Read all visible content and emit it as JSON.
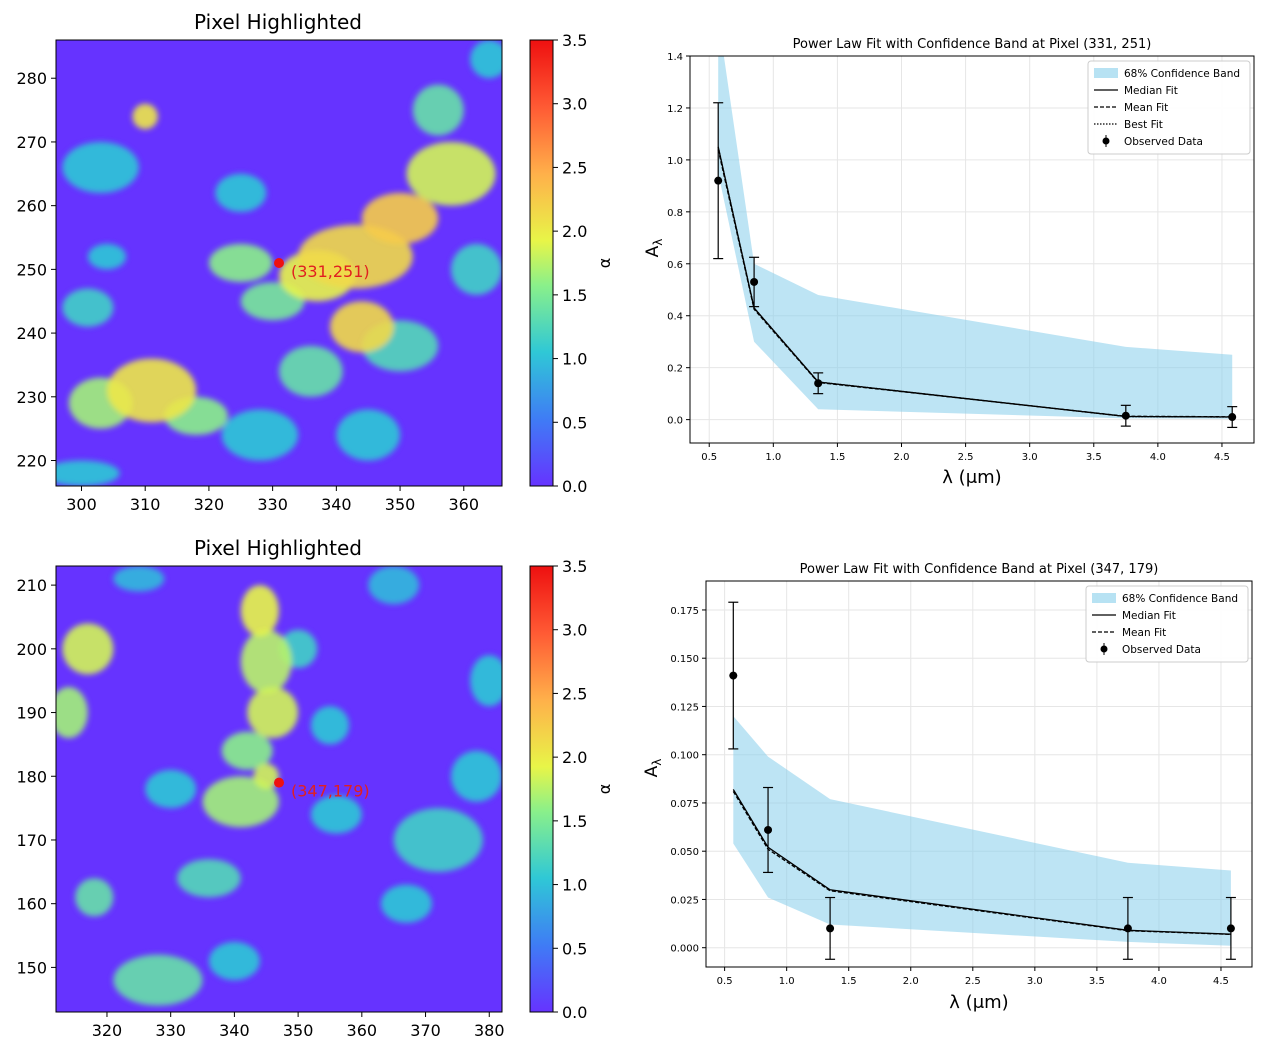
{
  "colors": {
    "band": "#87ceeb",
    "fit": "#000000",
    "marker_highlight": "#ee1111",
    "label_highlight": "#e02020",
    "map_background": "#6633ff"
  },
  "chart_data": [
    {
      "type": "heatmap",
      "panel": "top-left",
      "title": "Pixel Highlighted",
      "xlabel": "",
      "ylabel": "",
      "xlim": [
        296,
        366
      ],
      "ylim": [
        216,
        286
      ],
      "xticks": [
        300,
        310,
        320,
        330,
        340,
        350,
        360
      ],
      "yticks": [
        220,
        230,
        240,
        250,
        260,
        270,
        280
      ],
      "colorbar": {
        "label": "α",
        "min": 0.0,
        "max": 3.5,
        "ticks": [
          "0.0",
          "0.5",
          "1.0",
          "1.5",
          "2.0",
          "2.5",
          "3.0",
          "3.5"
        ]
      },
      "colormap": "rainbow",
      "highlight": {
        "x": 331,
        "y": 251,
        "label": "(331,251)"
      },
      "blobs": [
        {
          "x": 343,
          "y": 252,
          "rx": 9,
          "ry": 5,
          "v": 2.1
        },
        {
          "x": 350,
          "y": 258,
          "rx": 6,
          "ry": 4,
          "v": 2.2
        },
        {
          "x": 337,
          "y": 249,
          "rx": 6,
          "ry": 4,
          "v": 1.9
        },
        {
          "x": 344,
          "y": 241,
          "rx": 5,
          "ry": 4,
          "v": 2.1
        },
        {
          "x": 358,
          "y": 265,
          "rx": 7,
          "ry": 5,
          "v": 1.8
        },
        {
          "x": 356,
          "y": 275,
          "rx": 4,
          "ry": 4,
          "v": 1.3
        },
        {
          "x": 311,
          "y": 231,
          "rx": 7,
          "ry": 5,
          "v": 2.0
        },
        {
          "x": 303,
          "y": 229,
          "rx": 5,
          "ry": 4,
          "v": 1.6
        },
        {
          "x": 318,
          "y": 227,
          "rx": 5,
          "ry": 3,
          "v": 1.5
        },
        {
          "x": 330,
          "y": 245,
          "rx": 5,
          "ry": 3,
          "v": 1.4
        },
        {
          "x": 325,
          "y": 251,
          "rx": 5,
          "ry": 3,
          "v": 1.5
        },
        {
          "x": 310,
          "y": 274,
          "rx": 2,
          "ry": 2,
          "v": 2.0
        },
        {
          "x": 303,
          "y": 266,
          "rx": 6,
          "ry": 4,
          "v": 1.0
        },
        {
          "x": 304,
          "y": 252,
          "rx": 3,
          "ry": 2,
          "v": 1.0
        },
        {
          "x": 301,
          "y": 244,
          "rx": 4,
          "ry": 3,
          "v": 1.1
        },
        {
          "x": 336,
          "y": 234,
          "rx": 5,
          "ry": 4,
          "v": 1.3
        },
        {
          "x": 350,
          "y": 238,
          "rx": 6,
          "ry": 4,
          "v": 1.2
        },
        {
          "x": 325,
          "y": 262,
          "rx": 4,
          "ry": 3,
          "v": 1.0
        },
        {
          "x": 328,
          "y": 224,
          "rx": 6,
          "ry": 4,
          "v": 1.0
        },
        {
          "x": 345,
          "y": 224,
          "rx": 5,
          "ry": 4,
          "v": 1.0
        },
        {
          "x": 362,
          "y": 250,
          "rx": 4,
          "ry": 4,
          "v": 1.1
        },
        {
          "x": 364,
          "y": 283,
          "rx": 3,
          "ry": 3,
          "v": 1.0
        },
        {
          "x": 300,
          "y": 218,
          "rx": 6,
          "ry": 2,
          "v": 1.0
        }
      ]
    },
    {
      "type": "line",
      "panel": "top-right",
      "title": "Power Law Fit with Confidence Band at Pixel (331, 251)",
      "xlabel": "λ (μm)",
      "ylabel": "A_λ",
      "xlim": [
        0.35,
        4.75
      ],
      "ylim": [
        -0.09,
        1.4
      ],
      "xticks": [
        "0.5",
        "1.0",
        "1.5",
        "2.0",
        "2.5",
        "3.0",
        "3.5",
        "4.0",
        "4.5"
      ],
      "yticks": [
        "0.0",
        "0.2",
        "0.4",
        "0.6",
        "0.8",
        "1.0",
        "1.2",
        "1.4"
      ],
      "grid": true,
      "legend": [
        "68% Confidence Band",
        "Median Fit",
        "Mean Fit",
        "Best Fit",
        "Observed Data"
      ],
      "legend_position": "top-right",
      "band": {
        "x": [
          0.57,
          0.85,
          1.35,
          3.75,
          4.58
        ],
        "lower": [
          0.95,
          0.3,
          0.04,
          0.005,
          0.003
        ],
        "upper": [
          1.55,
          0.6,
          0.48,
          0.28,
          0.25
        ]
      },
      "fits": {
        "x": [
          0.57,
          0.85,
          1.35,
          3.75,
          4.58
        ],
        "median": [
          1.05,
          0.43,
          0.145,
          0.012,
          0.01
        ],
        "mean": [
          1.04,
          0.425,
          0.143,
          0.013,
          0.011
        ],
        "best": [
          1.05,
          0.43,
          0.145,
          0.012,
          0.01
        ]
      },
      "observed": {
        "x": [
          0.57,
          0.85,
          1.35,
          3.75,
          4.58
        ],
        "y": [
          0.92,
          0.53,
          0.14,
          0.015,
          0.01
        ],
        "err": [
          0.3,
          0.095,
          0.04,
          0.04,
          0.04
        ]
      }
    },
    {
      "type": "heatmap",
      "panel": "bottom-left",
      "title": "Pixel Highlighted",
      "xlabel": "",
      "ylabel": "",
      "xlim": [
        312,
        382
      ],
      "ylim": [
        143,
        213
      ],
      "xticks": [
        320,
        330,
        340,
        350,
        360,
        370,
        380
      ],
      "yticks": [
        150,
        160,
        170,
        180,
        190,
        200,
        210
      ],
      "colorbar": {
        "label": "α",
        "min": 0.0,
        "max": 3.5,
        "ticks": [
          "0.0",
          "0.5",
          "1.0",
          "1.5",
          "2.0",
          "2.5",
          "3.0",
          "3.5"
        ]
      },
      "colormap": "rainbow",
      "highlight": {
        "x": 347,
        "y": 179,
        "label": "(347,179)"
      },
      "blobs": [
        {
          "x": 344,
          "y": 206,
          "rx": 3,
          "ry": 4,
          "v": 1.9
        },
        {
          "x": 345,
          "y": 198,
          "rx": 4,
          "ry": 5,
          "v": 1.7
        },
        {
          "x": 346,
          "y": 190,
          "rx": 4,
          "ry": 4,
          "v": 1.8
        },
        {
          "x": 341,
          "y": 176,
          "rx": 6,
          "ry": 4,
          "v": 1.6
        },
        {
          "x": 342,
          "y": 184,
          "rx": 4,
          "ry": 3,
          "v": 1.5
        },
        {
          "x": 317,
          "y": 200,
          "rx": 4,
          "ry": 4,
          "v": 1.8
        },
        {
          "x": 314,
          "y": 190,
          "rx": 3,
          "ry": 4,
          "v": 1.6
        },
        {
          "x": 318,
          "y": 161,
          "rx": 3,
          "ry": 3,
          "v": 1.3
        },
        {
          "x": 330,
          "y": 178,
          "rx": 4,
          "ry": 3,
          "v": 1.0
        },
        {
          "x": 336,
          "y": 164,
          "rx": 5,
          "ry": 3,
          "v": 1.2
        },
        {
          "x": 328,
          "y": 148,
          "rx": 7,
          "ry": 4,
          "v": 1.3
        },
        {
          "x": 340,
          "y": 151,
          "rx": 4,
          "ry": 3,
          "v": 1.0
        },
        {
          "x": 355,
          "y": 188,
          "rx": 3,
          "ry": 3,
          "v": 1.0
        },
        {
          "x": 356,
          "y": 174,
          "rx": 4,
          "ry": 3,
          "v": 1.0
        },
        {
          "x": 372,
          "y": 170,
          "rx": 7,
          "ry": 5,
          "v": 1.1
        },
        {
          "x": 378,
          "y": 180,
          "rx": 4,
          "ry": 4,
          "v": 1.0
        },
        {
          "x": 367,
          "y": 160,
          "rx": 4,
          "ry": 3,
          "v": 1.0
        },
        {
          "x": 350,
          "y": 200,
          "rx": 3,
          "ry": 3,
          "v": 1.1
        },
        {
          "x": 380,
          "y": 195,
          "rx": 3,
          "ry": 4,
          "v": 1.0
        },
        {
          "x": 365,
          "y": 210,
          "rx": 4,
          "ry": 3,
          "v": 0.9
        },
        {
          "x": 325,
          "y": 211,
          "rx": 4,
          "ry": 2,
          "v": 0.9
        },
        {
          "x": 345,
          "y": 180,
          "rx": 2,
          "ry": 2,
          "v": 1.8
        }
      ]
    },
    {
      "type": "line",
      "panel": "bottom-right",
      "title": "Power Law Fit with Confidence Band at Pixel (347, 179)",
      "xlabel": "λ (μm)",
      "ylabel": "A_λ",
      "xlim": [
        0.35,
        4.75
      ],
      "ylim": [
        -0.01,
        0.19
      ],
      "xticks": [
        "0.5",
        "1.0",
        "1.5",
        "2.0",
        "2.5",
        "3.0",
        "3.5",
        "4.0",
        "4.5"
      ],
      "yticks": [
        "0.000",
        "0.025",
        "0.050",
        "0.075",
        "0.100",
        "0.125",
        "0.150",
        "0.175"
      ],
      "grid": true,
      "legend": [
        "68% Confidence Band",
        "Median Fit",
        "Mean Fit",
        "Observed Data"
      ],
      "legend_position": "top-right",
      "band": {
        "x": [
          0.57,
          0.85,
          1.35,
          3.75,
          4.58
        ],
        "lower": [
          0.054,
          0.026,
          0.012,
          0.003,
          0.001
        ],
        "upper": [
          0.12,
          0.099,
          0.077,
          0.044,
          0.04
        ]
      },
      "fits": {
        "x": [
          0.57,
          0.85,
          1.35,
          3.75,
          4.58
        ],
        "median": [
          0.082,
          0.052,
          0.03,
          0.009,
          0.007
        ],
        "mean": [
          0.081,
          0.051,
          0.0295,
          0.0088,
          0.0069
        ]
      },
      "observed": {
        "x": [
          0.57,
          0.85,
          1.35,
          3.75,
          4.58
        ],
        "y": [
          0.141,
          0.061,
          0.01,
          0.01,
          0.01
        ],
        "err": [
          0.038,
          0.022,
          0.016,
          0.016,
          0.016
        ]
      }
    }
  ]
}
